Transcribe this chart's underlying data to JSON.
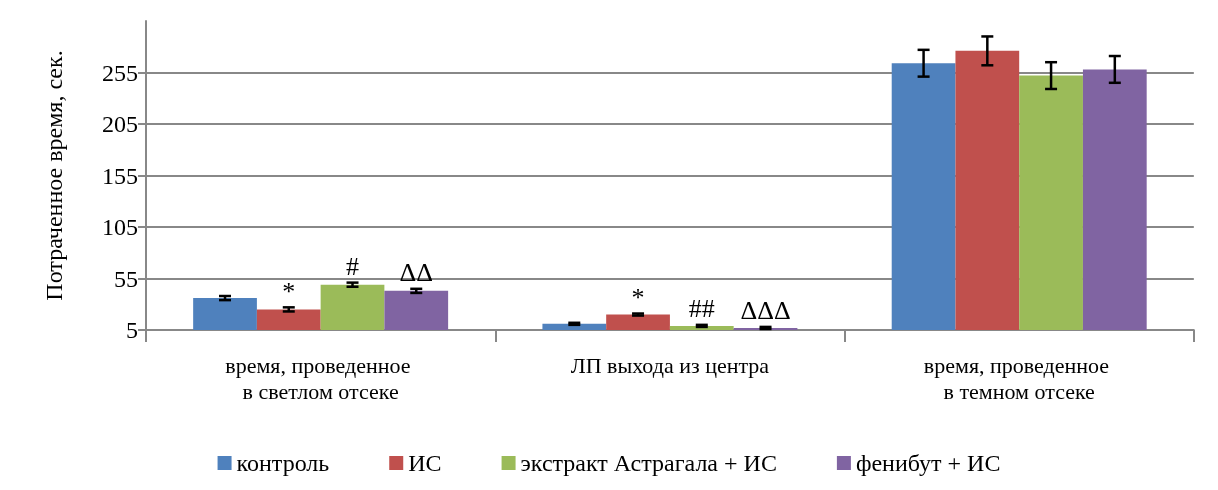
{
  "chart_data": {
    "type": "bar",
    "ylabel": "Потраченное время, сек.",
    "categories": [
      "время, проведенное в светлом отсеке",
      "ЛП выхода из центра",
      "время, проведенное в темном отсеке"
    ],
    "series": [
      {
        "name": "контроль",
        "color": "#4f81bd",
        "values": [
          36,
          11,
          264
        ],
        "errors": [
          2,
          1,
          13
        ]
      },
      {
        "name": "ИС",
        "color": "#c0504d",
        "values": [
          25,
          20,
          276
        ],
        "errors": [
          2,
          1,
          14
        ],
        "value_labels": [
          "*",
          "*",
          null
        ]
      },
      {
        "name": "экстракт Астрагала + ИС",
        "color": "#9bbb59",
        "values": [
          49,
          9,
          252
        ],
        "errors": [
          2,
          1,
          13
        ],
        "value_labels": [
          "#",
          "##",
          null
        ]
      },
      {
        "name": "фенибут + ИС",
        "color": "#8064a2",
        "values": [
          43,
          7,
          258
        ],
        "errors": [
          2,
          1,
          13
        ],
        "value_labels": [
          "ΔΔ",
          "ΔΔΔ",
          null
        ]
      }
    ],
    "ylim": [
      5,
      305
    ],
    "yticks": [
      5,
      55,
      105,
      155,
      205,
      255
    ],
    "grid": "y",
    "legend": "bottom"
  }
}
